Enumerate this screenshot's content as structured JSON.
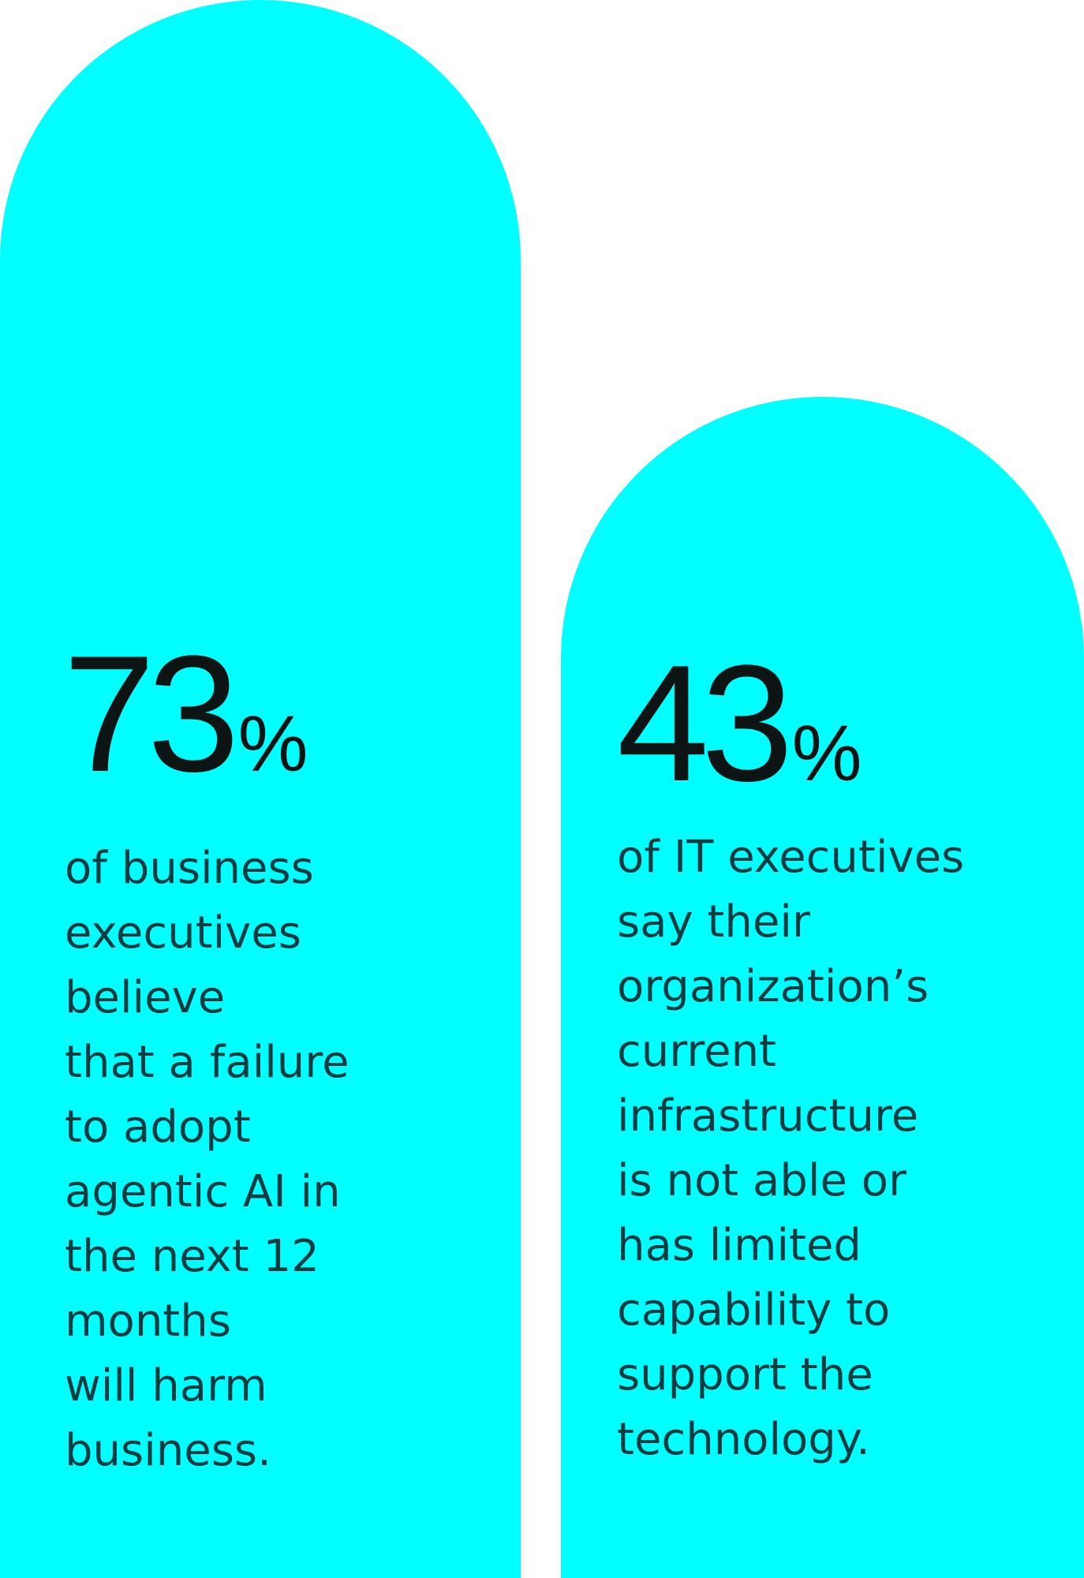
{
  "stats": [
    {
      "number": "73",
      "unit": "%",
      "lines": [
        "of business",
        "executives",
        "believe",
        "that a failure",
        "to adopt",
        "agentic AI in",
        "the next 12",
        "months",
        "will harm",
        "business."
      ]
    },
    {
      "number": "43",
      "unit": "%",
      "lines": [
        "of IT executives",
        "say their",
        "organization’s",
        "current",
        "infrastructure",
        "is not able or",
        "has limited",
        "capability to",
        "support the",
        "technology."
      ]
    }
  ]
}
